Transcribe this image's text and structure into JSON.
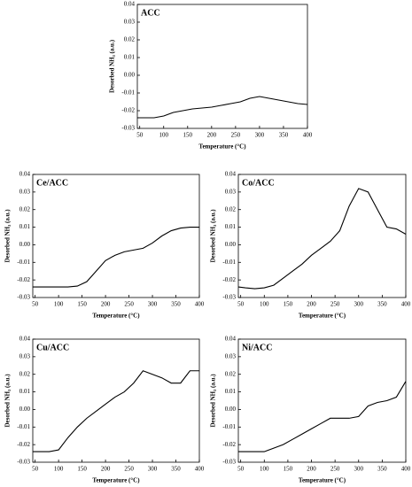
{
  "chart_data": [
    {
      "type": "line",
      "title": "ACC",
      "x_label": "Temperature (°C)",
      "y_label": "Desorbed NH₃ (a.u.)",
      "x": [
        45,
        60,
        80,
        100,
        120,
        140,
        160,
        180,
        200,
        220,
        240,
        260,
        280,
        300,
        320,
        340,
        360,
        380,
        400
      ],
      "series": [
        {
          "color": "#000000",
          "values": [
            -0.024,
            -0.024,
            -0.024,
            -0.023,
            -0.021,
            -0.02,
            -0.019,
            -0.0185,
            -0.018,
            -0.017,
            -0.016,
            -0.015,
            -0.013,
            -0.012,
            -0.013,
            -0.014,
            -0.015,
            -0.016,
            -0.0165
          ]
        }
      ],
      "xlim": [
        45,
        400
      ],
      "xticks": [
        50,
        100,
        150,
        200,
        250,
        300,
        350,
        400
      ],
      "ylim": [
        -0.03,
        0.04
      ],
      "yticks": [
        -0.03,
        -0.02,
        -0.01,
        {
          "value": 0,
          "label": "0.00"
        },
        0.01,
        0.02,
        0.03,
        0.04
      ],
      "grid": false
    },
    {
      "type": "line",
      "title": "Ce/ACC",
      "x_label": "Temperature (°C)",
      "y_label": "Desorbed NH₃ (a.u.)",
      "x": [
        45,
        60,
        80,
        100,
        120,
        140,
        160,
        180,
        200,
        220,
        240,
        260,
        280,
        300,
        320,
        340,
        360,
        380,
        400
      ],
      "series": [
        {
          "color": "#000000",
          "values": [
            -0.024,
            -0.024,
            -0.024,
            -0.024,
            -0.024,
            -0.0235,
            -0.021,
            -0.015,
            -0.009,
            -0.006,
            -0.004,
            -0.003,
            -0.002,
            0.001,
            0.005,
            0.008,
            0.0095,
            0.01,
            0.01
          ]
        }
      ],
      "xlim": [
        45,
        400
      ],
      "xticks": [
        50,
        100,
        150,
        200,
        250,
        300,
        350,
        400
      ],
      "ylim": [
        -0.03,
        0.04
      ],
      "yticks": [
        -0.03,
        -0.02,
        -0.01,
        {
          "value": 0,
          "label": "0.00"
        },
        0.01,
        0.02,
        0.03,
        0.04
      ],
      "grid": false
    },
    {
      "type": "line",
      "title": "Co/ACC",
      "x_label": "Temperature (°C)",
      "y_label": "Desorbed NH₃ (a.u.)",
      "x": [
        45,
        60,
        80,
        100,
        120,
        140,
        160,
        180,
        200,
        220,
        240,
        260,
        280,
        300,
        320,
        340,
        360,
        380,
        400
      ],
      "series": [
        {
          "color": "#000000",
          "values": [
            -0.024,
            -0.0245,
            -0.025,
            -0.0245,
            -0.023,
            -0.019,
            -0.015,
            -0.011,
            -0.006,
            -0.002,
            0.002,
            0.008,
            0.022,
            0.032,
            0.03,
            0.02,
            0.01,
            0.009,
            0.006
          ]
        }
      ],
      "xlim": [
        45,
        400
      ],
      "xticks": [
        50,
        100,
        150,
        200,
        250,
        300,
        350,
        400
      ],
      "ylim": [
        -0.03,
        0.04
      ],
      "yticks": [
        -0.03,
        -0.02,
        -0.01,
        {
          "value": 0,
          "label": "0.00"
        },
        0.01,
        0.02,
        0.03,
        0.04
      ],
      "grid": false
    },
    {
      "type": "line",
      "title": "Cu/ACC",
      "x_label": "Temperature (°C)",
      "y_label": "Desorbed NH₃ (a.u.)",
      "x": [
        45,
        60,
        80,
        100,
        120,
        140,
        160,
        180,
        200,
        220,
        240,
        260,
        280,
        300,
        320,
        340,
        360,
        380,
        400
      ],
      "series": [
        {
          "color": "#000000",
          "values": [
            -0.024,
            -0.024,
            -0.024,
            -0.023,
            -0.016,
            -0.01,
            -0.005,
            -0.001,
            0.003,
            0.007,
            0.01,
            0.015,
            0.022,
            0.02,
            0.018,
            0.015,
            0.015,
            0.022,
            0.022
          ]
        }
      ],
      "xlim": [
        45,
        400
      ],
      "xticks": [
        50,
        100,
        150,
        200,
        250,
        300,
        350,
        400
      ],
      "ylim": [
        -0.03,
        0.04
      ],
      "yticks": [
        -0.03,
        -0.02,
        -0.01,
        {
          "value": 0,
          "label": "0.00"
        },
        0.01,
        0.02,
        0.03,
        0.04
      ],
      "grid": false
    },
    {
      "type": "line",
      "title": "Ni/ACC",
      "x_label": "Temperature (°C)",
      "y_label": "Desorbed NH₃ (a.u.)",
      "x": [
        45,
        60,
        80,
        100,
        120,
        140,
        160,
        180,
        200,
        220,
        240,
        260,
        280,
        300,
        320,
        340,
        360,
        380,
        400
      ],
      "series": [
        {
          "color": "#000000",
          "values": [
            -0.024,
            -0.024,
            -0.024,
            -0.024,
            -0.022,
            -0.02,
            -0.017,
            -0.014,
            -0.011,
            -0.008,
            -0.005,
            -0.005,
            -0.005,
            -0.004,
            0.002,
            0.004,
            0.005,
            0.007,
            0.016
          ]
        }
      ],
      "xlim": [
        45,
        400
      ],
      "xticks": [
        50,
        100,
        150,
        200,
        250,
        300,
        350,
        400
      ],
      "ylim": [
        -0.03,
        0.04
      ],
      "yticks": [
        -0.03,
        -0.02,
        -0.01,
        {
          "value": 0,
          "label": "0.00"
        },
        0.01,
        0.02,
        0.03,
        0.04
      ],
      "grid": false
    }
  ]
}
